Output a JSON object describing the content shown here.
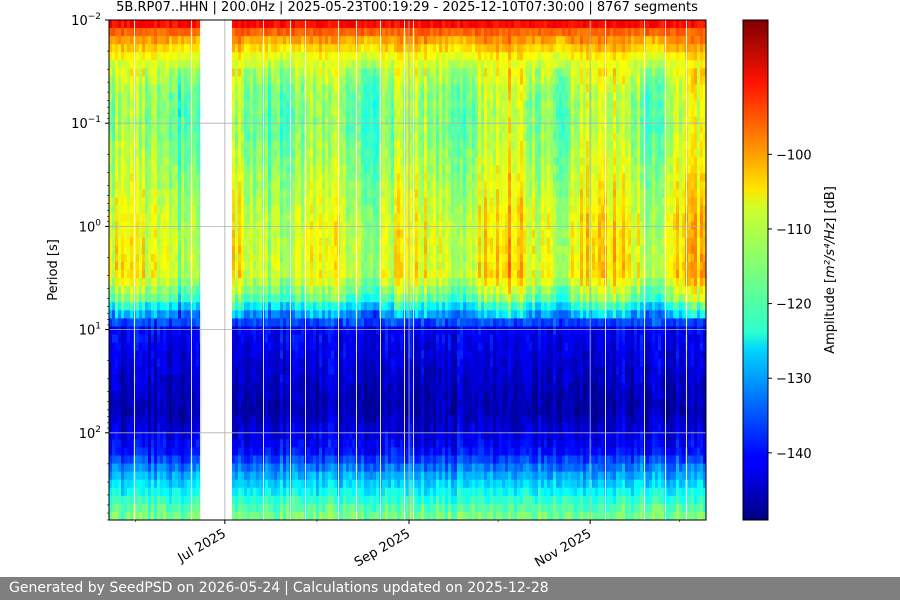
{
  "chart_data": {
    "type": "heatmap",
    "title": "5B.RP07..HHN | 200.0Hz | 2025-05-23T00:19:29 - 2025-12-10T07:30:00 | 8767 segments",
    "ylabel": "Period [s]",
    "xlabel": "",
    "y_scale": "log",
    "y_inverted": true,
    "y_tick_labels": [
      {
        "value": 0.01,
        "base": "10",
        "exp": "−2"
      },
      {
        "value": 0.1,
        "base": "10",
        "exp": "−1"
      },
      {
        "value": 1,
        "base": "10",
        "exp": "0"
      },
      {
        "value": 10,
        "base": "10",
        "exp": "1"
      },
      {
        "value": 100,
        "base": "10",
        "exp": "2"
      }
    ],
    "y_range": [
      0.01,
      700
    ],
    "x_range": [
      "2025-05-23",
      "2025-12-10"
    ],
    "x_ticks": [
      {
        "date": "2025-07-01",
        "label": "Jul 2025"
      },
      {
        "date": "2025-09-01",
        "label": "Sep 2025"
      },
      {
        "date": "2025-11-01",
        "label": "Nov 2025"
      }
    ],
    "data_gap": [
      "2025-06-23",
      "2025-07-03"
    ],
    "grid": true,
    "colormap": "jet",
    "colorbar": {
      "label_plain_start": "Amplitude [",
      "label_math": "m²/s⁴/Hz",
      "label_plain_end": "] [dB]",
      "range": [
        -149,
        -82
      ],
      "ticks": [
        -100,
        -110,
        -120,
        -130,
        -140
      ]
    },
    "spectral_profile": [
      {
        "period": 0.01,
        "db": -88
      },
      {
        "period": 0.014,
        "db": -99
      },
      {
        "period": 0.025,
        "db": -110
      },
      {
        "period": 0.05,
        "db": -115
      },
      {
        "period": 0.1,
        "db": -116
      },
      {
        "period": 0.3,
        "db": -113
      },
      {
        "period": 1,
        "db": -110
      },
      {
        "period": 3,
        "db": -109
      },
      {
        "period": 5,
        "db": -118
      },
      {
        "period": 7,
        "db": -130
      },
      {
        "period": 10,
        "db": -141
      },
      {
        "period": 60,
        "db": -146
      },
      {
        "period": 150,
        "db": -140
      },
      {
        "period": 250,
        "db": -130
      },
      {
        "period": 500,
        "db": -119
      },
      {
        "period": 700,
        "db": -115
      }
    ]
  },
  "footer": {
    "generated": "Generated by SeedPSD on 2026-05-24",
    "separator": "|",
    "updated": "Calculations updated on 2025-12-28"
  }
}
